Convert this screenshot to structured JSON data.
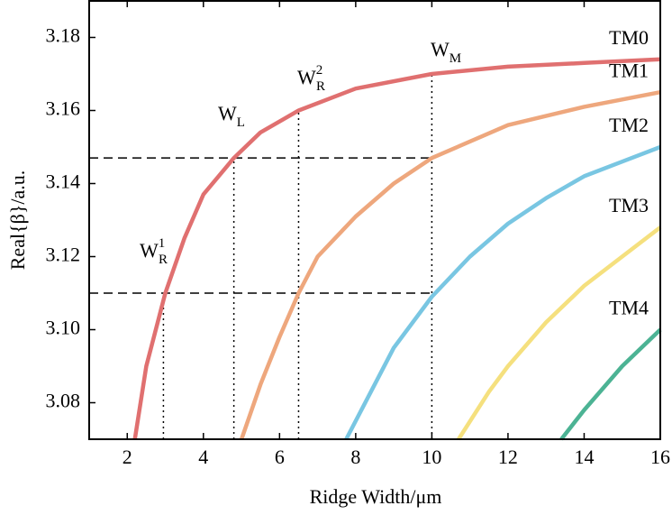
{
  "chart_data": {
    "type": "line",
    "xlabel": "Ridge Width/μm",
    "ylabel": "Real{β}/a.u.",
    "xlim": [
      1,
      16
    ],
    "ylim": [
      3.07,
      3.19
    ],
    "xticks": [
      2,
      4,
      6,
      8,
      10,
      12,
      14,
      16
    ],
    "yticks": [
      3.08,
      {
        "value": 3.1,
        "label": "3.10"
      },
      3.12,
      3.14,
      3.16,
      3.18
    ],
    "series": [
      {
        "name": "TM0",
        "color": "#e07070",
        "x": [
          2.2,
          2.5,
          3,
          3.5,
          4,
          4.8,
          5.5,
          6.5,
          8,
          10,
          12,
          14,
          16
        ],
        "values": [
          3.07,
          3.09,
          3.11,
          3.125,
          3.137,
          3.147,
          3.154,
          3.16,
          3.166,
          3.17,
          3.172,
          3.173,
          3.174
        ]
      },
      {
        "name": "TM1",
        "color": "#eea77d",
        "x": [
          5,
          5.5,
          6,
          6.5,
          7,
          8,
          9,
          10,
          12,
          14,
          16
        ],
        "values": [
          3.07,
          3.085,
          3.098,
          3.11,
          3.12,
          3.131,
          3.14,
          3.147,
          3.156,
          3.161,
          3.165
        ]
      },
      {
        "name": "TM2",
        "color": "#79c6e2",
        "x": [
          7.75,
          8.5,
          9,
          10,
          11,
          12,
          13,
          14,
          15,
          16
        ],
        "values": [
          3.07,
          3.085,
          3.095,
          3.109,
          3.12,
          3.129,
          3.136,
          3.142,
          3.146,
          3.15
        ]
      },
      {
        "name": "TM3",
        "color": "#f5e07e",
        "x": [
          10.7,
          11.5,
          12,
          13,
          14,
          15,
          16
        ],
        "values": [
          3.07,
          3.083,
          3.09,
          3.102,
          3.112,
          3.12,
          3.128
        ]
      },
      {
        "name": "TM4",
        "color": "#4cb394",
        "x": [
          13.4,
          14,
          15,
          16
        ],
        "values": [
          3.07,
          3.078,
          3.09,
          3.1
        ]
      }
    ],
    "hlines": [
      {
        "y": 3.147,
        "x_end": 10
      },
      {
        "y": 3.11,
        "x_end": 10
      }
    ],
    "vlines": [
      {
        "x": 2.95,
        "y_top": 3.11
      },
      {
        "x": 4.8,
        "y_top": 3.147
      },
      {
        "x": 6.5,
        "y_top": 3.16
      },
      {
        "x": 10,
        "y_top": 3.17
      }
    ],
    "annotations": [
      {
        "base": "W",
        "sub": "R",
        "sup": "1"
      },
      {
        "base": "W",
        "sub": "L"
      },
      {
        "base": "W",
        "sub": "R",
        "sup": "2"
      },
      {
        "base": "W",
        "sub": "M"
      }
    ]
  }
}
